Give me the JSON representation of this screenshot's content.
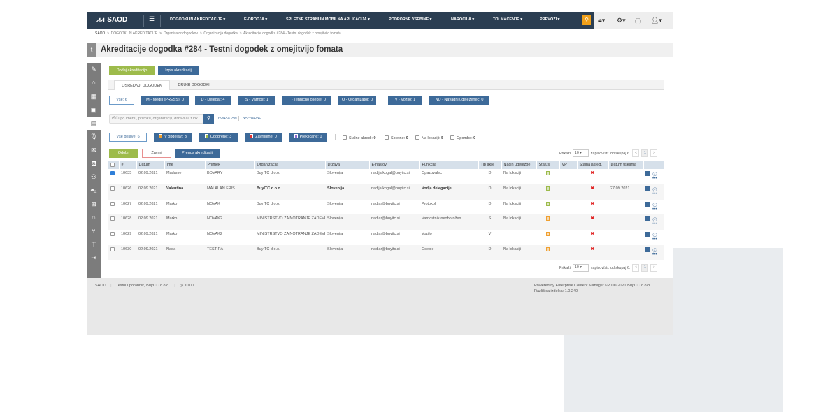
{
  "nav": {
    "logo": "SAOD",
    "menu": [
      "DOGODKI IN AKREDITACIJE ▾",
      "E-ORODJA ▾",
      "SPLETNE STRANI IN MOBILNA APLIKACIJA ▾",
      "PODPORNE VSEBINE ▾",
      "NAROČILA ▾",
      "TOLMAČENJE ▾",
      "PREVOZI ▾"
    ]
  },
  "breadcrumb": [
    "SAOD",
    "DOGODKI IN AKREDITACIJE",
    "Organizator dogodkov",
    "Organizacija dogodka",
    "Akreditacije dogodka #284 - Testni dogodek z omejitvijo fomata"
  ],
  "title": "Akreditacije dogodka #284 - Testni dogodek z omejitvijo fomata",
  "actions": {
    "add": "Dodaj akreditacijo",
    "print": "Izpis akreditacij"
  },
  "tabs": [
    "OSREDNJI DOGODEK",
    "DRUGI DOGODKI"
  ],
  "type_filters": [
    "Vse: 6",
    "M - Mediji (PRESS): 0",
    "D - Delegat: 4",
    "S - Varnost: 1",
    "T - Tehnično osebje: 0",
    "O - Organizator: 0",
    "V - Vozilo: 1",
    "NU - Navadni udeleženec: 0"
  ],
  "search": {
    "placeholder": "IŠČI po imenu, priimku, organizaciji, državi ali funk",
    "reset": "PONASTAVI",
    "advanced": "NAPREDNO"
  },
  "status_filters": [
    "Vse prijave: 6",
    "V obdelavi: 3",
    "Odobrene: 3",
    "Zavrnjene: 0",
    "Preklicane: 0"
  ],
  "status_colors": [
    "#f0a030",
    "#9dbb4b",
    "#e03030",
    "#8a6ad0"
  ],
  "checks": [
    {
      "label": "Stalne akred.:",
      "value": "0"
    },
    {
      "label": "Spletne:",
      "value": "0"
    },
    {
      "label": "Na lokaciji:",
      "value": "5"
    },
    {
      "label": "Opombe:",
      "value": "0"
    }
  ],
  "bulk": {
    "approve": "Odobri",
    "reject": "Zavrni",
    "transfer": "Prenos akreditacij"
  },
  "paging": {
    "show": "Prikaži",
    "per_page": "10",
    "suffix": "zapisov/str. od skupaj 6.",
    "prev": "<",
    "page": "1",
    "next": ">"
  },
  "table": {
    "headers": [
      "#",
      "Datum",
      "Ime",
      "Priimek",
      "Organizacija",
      "Država",
      "E-naslov",
      "Funkcija",
      "Tip akre",
      "Način udeležbe",
      "Status",
      "VP",
      "Stalna akred.",
      "Datum tiskanja"
    ],
    "rows": [
      {
        "checked": true,
        "id": "10635",
        "date": "02.09.2021",
        "name": "Madame",
        "surname": "BOVARY",
        "org": "BuyITC d.o.o.",
        "country": "Slovenija",
        "email": "nadija.kogal@buyitc.si",
        "func": "Opazovalec",
        "type": "D",
        "mode": "Na lokaciji",
        "status": "approved",
        "vp": "",
        "perm": "✖",
        "printed": "",
        "bold": false
      },
      {
        "checked": false,
        "id": "10626",
        "date": "02.09.2021",
        "name": "Valentina",
        "surname": "MALALAN FRIŠ",
        "org": "BuyITC d.o.o.",
        "country": "Slovenija",
        "email": "nadija.kogal@buyitc.si",
        "func": "Vodja delegacije",
        "type": "D",
        "mode": "Na lokaciji",
        "status": "approved",
        "vp": "",
        "perm": "✖",
        "printed": "27.09.2021",
        "bold": true
      },
      {
        "checked": false,
        "id": "10627",
        "date": "02.09.2021",
        "name": "Marko",
        "surname": "NOVAK",
        "org": "BuyITC d.o.o.",
        "country": "Slovenija",
        "email": "nadjar@buyitc.si",
        "func": "Protokol",
        "type": "D",
        "mode": "Na lokaciji",
        "status": "approved",
        "vp": "",
        "perm": "✖",
        "printed": "",
        "bold": false
      },
      {
        "checked": false,
        "id": "10628",
        "date": "02.09.2021",
        "name": "Marko",
        "surname": "NOVAK2",
        "org": "MINISTRSTVO ZA NOTRANJE ZADEVE",
        "country": "Slovenija",
        "email": "nadjar@buyitc.si",
        "func": "Varnostnik-neoborožen",
        "type": "S",
        "mode": "Na lokaciji",
        "status": "processing",
        "vp": "",
        "perm": "✖",
        "printed": "",
        "bold": false
      },
      {
        "checked": false,
        "id": "10629",
        "date": "02.09.2021",
        "name": "Marko",
        "surname": "NOVAK2",
        "org": "MINISTRSTVO ZA NOTRANJE ZADEVE",
        "country": "Slovenija",
        "email": "nadjar@buyitc.si",
        "func": "Vozilo",
        "type": "V",
        "mode": "",
        "status": "processing",
        "vp": "",
        "perm": "✖",
        "printed": "",
        "bold": false
      },
      {
        "checked": false,
        "id": "10630",
        "date": "02.09.2021",
        "name": "Nada",
        "surname": "TESTIRA",
        "org": "BuyITC d.o.o.",
        "country": "Slovenija",
        "email": "nadjar@buyitc.si",
        "func": "Osebje",
        "type": "D",
        "mode": "Na lokaciji",
        "status": "processing",
        "vp": "",
        "perm": "✖",
        "printed": "",
        "bold": false
      }
    ]
  },
  "footer": {
    "app": "SAOD",
    "user": "Testni uporabnik, BuyITC d.o.o.",
    "time": "10:00",
    "powered": "Powered by Enterprise Content Manager ©2000-2021 BuyITC d.o.o.",
    "version": "Različica izdelka: 1.0.240"
  }
}
